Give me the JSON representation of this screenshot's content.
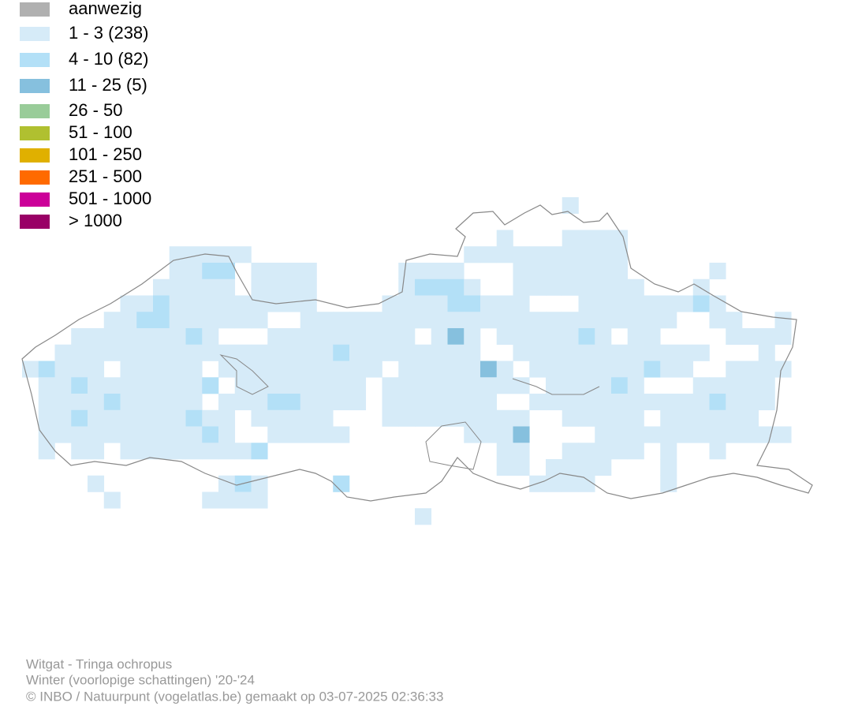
{
  "legend": [
    {
      "label": "aanwezig",
      "color": "#b0b0b0"
    },
    {
      "label": "1 - 3 (238)",
      "color": "#d6ebf8"
    },
    {
      "label": "4 - 10 (82)",
      "color": "#b3e0f7"
    },
    {
      "label": "11 - 25 (5)",
      "color": "#86c0de"
    },
    {
      "label": "26 - 50",
      "color": "#99cc99"
    },
    {
      "label": "51 - 100",
      "color": "#b0c030"
    },
    {
      "label": "101 - 250",
      "color": "#e0b000"
    },
    {
      "label": "251 - 500",
      "color": "#ff6a00"
    },
    {
      "label": "501 - 1000",
      "color": "#cc0099"
    },
    {
      "label": "> 1000",
      "color": "#990066"
    }
  ],
  "footer": [
    "Witgat - Tringa ochropus",
    "Winter (voorlopige schattingen) '20-'24",
    "© INBO / Natuurpunt (vogelatlas.be) gemaakt op 03-07-2025 02:36:33"
  ]
}
